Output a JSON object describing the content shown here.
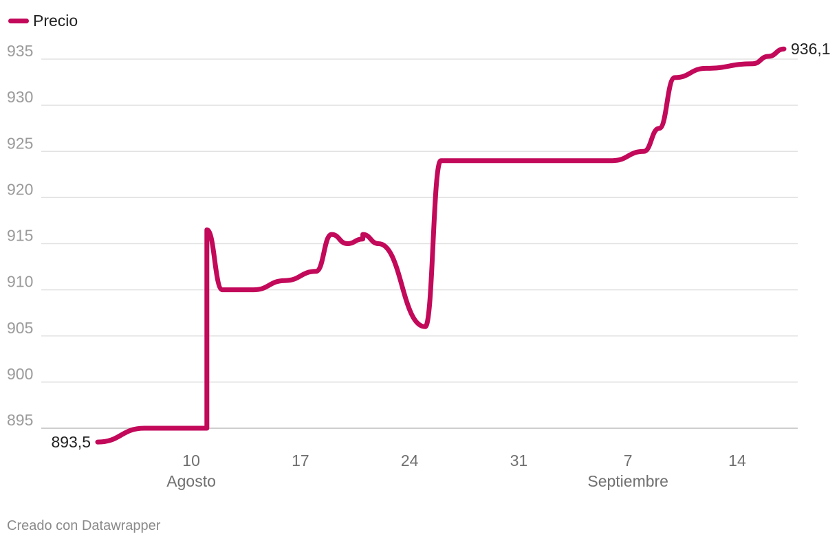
{
  "chart_data": {
    "type": "line",
    "series": [
      {
        "name": "Precio",
        "color": "#c2095a",
        "points": [
          [
            "2023-08-04",
            893.5
          ],
          [
            "2023-08-07",
            895.0
          ],
          [
            "2023-08-11",
            895.0
          ],
          [
            "2023-08-11",
            916.5
          ],
          [
            "2023-08-12",
            910.0
          ],
          [
            "2023-08-14",
            910.0
          ],
          [
            "2023-08-16",
            911.0
          ],
          [
            "2023-08-18",
            912.0
          ],
          [
            "2023-08-19",
            916.0
          ],
          [
            "2023-08-20",
            915.0
          ],
          [
            "2023-08-21",
            915.5
          ],
          [
            "2023-08-21",
            916.0
          ],
          [
            "2023-08-22",
            915.0
          ],
          [
            "2023-08-25",
            906.0
          ],
          [
            "2023-08-26",
            924.0
          ],
          [
            "2023-08-28",
            924.0
          ],
          [
            "2023-09-06",
            924.0
          ],
          [
            "2023-09-08",
            925.0
          ],
          [
            "2023-09-09",
            927.5
          ],
          [
            "2023-09-10",
            933.0
          ],
          [
            "2023-09-12",
            934.0
          ],
          [
            "2023-09-15",
            934.5
          ],
          [
            "2023-09-16",
            935.3
          ],
          [
            "2023-09-17",
            936.1
          ]
        ]
      }
    ],
    "x_ticks": [
      {
        "date": "2023-08-10",
        "label": "10",
        "sublabel": "Agosto"
      },
      {
        "date": "2023-08-17",
        "label": "17",
        "sublabel": ""
      },
      {
        "date": "2023-08-24",
        "label": "24",
        "sublabel": ""
      },
      {
        "date": "2023-08-31",
        "label": "31",
        "sublabel": ""
      },
      {
        "date": "2023-09-07",
        "label": "7",
        "sublabel": "Septiembre"
      },
      {
        "date": "2023-09-14",
        "label": "14",
        "sublabel": ""
      }
    ],
    "y_ticks": [
      895,
      900,
      905,
      910,
      915,
      920,
      925,
      930,
      935
    ],
    "ylim": [
      893.5,
      936.1
    ],
    "xlim": [
      "2023-08-04",
      "2023-09-17"
    ],
    "grid": true,
    "legend_position": "top-left",
    "annotations": {
      "start_label": "893,5",
      "end_label": "936,1"
    }
  },
  "footer": {
    "credit": "Creado con Datawrapper"
  }
}
